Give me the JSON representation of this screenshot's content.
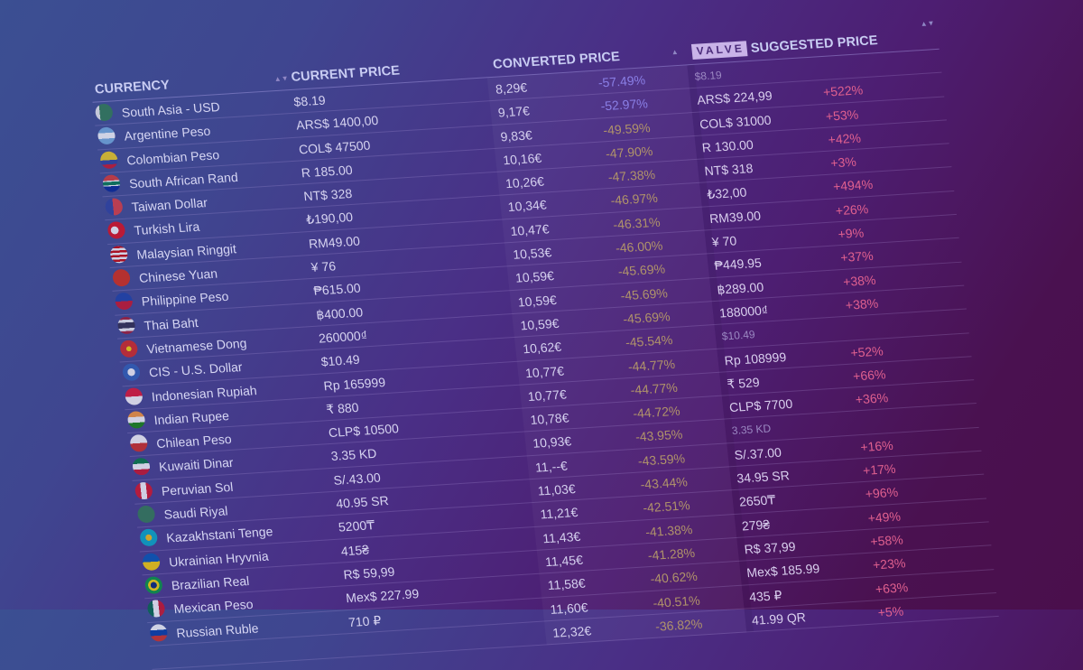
{
  "header": {
    "currency": "CURRENCY",
    "current_price": "CURRENT PRICE",
    "converted_price": "CONVERTED PRICE",
    "valve_badge": "VALVE",
    "suggested_price": "SUGGESTED PRICE",
    "sort_icon": "▲▼",
    "sort_asc_icon": "▲"
  },
  "colors": {
    "bg_start": "#3b4f92",
    "bg_end": "#4a0f4c",
    "header_text": "#c9cdf3",
    "pct_negative_strong": "#8a7fe6",
    "pct_negative": "#b0936a",
    "pct_positive": "#e0608f",
    "valve_badge_bg": "#c9b3e8"
  },
  "rows": [
    {
      "currency": "South Asia - USD",
      "flag": "flag-pakistan",
      "current": "$8.19",
      "converted": "8,29€",
      "pct": "-57.49%",
      "pct_style": "blue",
      "suggested": "$8.19",
      "suggested_muted": true,
      "diff": ""
    },
    {
      "currency": "Argentine Peso",
      "flag": "flag-argentina",
      "current": "ARS$ 1400,00",
      "converted": "9,17€",
      "pct": "-52.97%",
      "pct_style": "blue",
      "suggested": "ARS$ 224,99",
      "suggested_muted": false,
      "diff": "+522%"
    },
    {
      "currency": "Colombian Peso",
      "flag": "flag-colombia",
      "current": "COL$ 47500",
      "converted": "9,83€",
      "pct": "-49.59%",
      "pct_style": "gold",
      "suggested": "COL$ 31000",
      "suggested_muted": false,
      "diff": "+53%"
    },
    {
      "currency": "South African Rand",
      "flag": "flag-south-africa",
      "current": "R 185.00",
      "converted": "10,16€",
      "pct": "-47.90%",
      "pct_style": "gold",
      "suggested": "R 130.00",
      "suggested_muted": false,
      "diff": "+42%"
    },
    {
      "currency": "Taiwan Dollar",
      "flag": "flag-taiwan",
      "current": "NT$ 328",
      "converted": "10,26€",
      "pct": "-47.38%",
      "pct_style": "gold",
      "suggested": "NT$ 318",
      "suggested_muted": false,
      "diff": "+3%"
    },
    {
      "currency": "Turkish Lira",
      "flag": "flag-turkey",
      "current": "₺190,00",
      "converted": "10,34€",
      "pct": "-46.97%",
      "pct_style": "gold",
      "suggested": "₺32,00",
      "suggested_muted": false,
      "diff": "+494%"
    },
    {
      "currency": "Malaysian Ringgit",
      "flag": "flag-malaysia",
      "current": "RM49.00",
      "converted": "10,47€",
      "pct": "-46.31%",
      "pct_style": "gold",
      "suggested": "RM39.00",
      "suggested_muted": false,
      "diff": "+26%"
    },
    {
      "currency": "Chinese Yuan",
      "flag": "flag-china",
      "current": "¥ 76",
      "converted": "10,53€",
      "pct": "-46.00%",
      "pct_style": "gold",
      "suggested": "¥ 70",
      "suggested_muted": false,
      "diff": "+9%"
    },
    {
      "currency": "Philippine Peso",
      "flag": "flag-philippines",
      "current": "₱615.00",
      "converted": "10,59€",
      "pct": "-45.69%",
      "pct_style": "gold",
      "suggested": "₱449.95",
      "suggested_muted": false,
      "diff": "+37%"
    },
    {
      "currency": "Thai Baht",
      "flag": "flag-thailand",
      "current": "฿400.00",
      "converted": "10,59€",
      "pct": "-45.69%",
      "pct_style": "gold",
      "suggested": "฿289.00",
      "suggested_muted": false,
      "diff": "+38%"
    },
    {
      "currency": "Vietnamese Dong",
      "flag": "flag-vietnam",
      "current": "260000₫",
      "converted": "10,59€",
      "pct": "-45.69%",
      "pct_style": "gold",
      "suggested": "188000₫",
      "suggested_muted": false,
      "diff": "+38%"
    },
    {
      "currency": "CIS - U.S. Dollar",
      "flag": "flag-cis",
      "current": "$10.49",
      "converted": "10,62€",
      "pct": "-45.54%",
      "pct_style": "gold",
      "suggested": "$10.49",
      "suggested_muted": true,
      "diff": ""
    },
    {
      "currency": "Indonesian Rupiah",
      "flag": "flag-indonesia",
      "current": "Rp 165999",
      "converted": "10,77€",
      "pct": "-44.77%",
      "pct_style": "gold",
      "suggested": "Rp 108999",
      "suggested_muted": false,
      "diff": "+52%"
    },
    {
      "currency": "Indian Rupee",
      "flag": "flag-india",
      "current": "₹ 880",
      "converted": "10,77€",
      "pct": "-44.77%",
      "pct_style": "gold",
      "suggested": "₹ 529",
      "suggested_muted": false,
      "diff": "+66%"
    },
    {
      "currency": "Chilean Peso",
      "flag": "flag-chile",
      "current": "CLP$ 10500",
      "converted": "10,78€",
      "pct": "-44.72%",
      "pct_style": "gold",
      "suggested": "CLP$ 7700",
      "suggested_muted": false,
      "diff": "+36%"
    },
    {
      "currency": "Kuwaiti Dinar",
      "flag": "flag-kuwait",
      "current": "3.35 KD",
      "converted": "10,93€",
      "pct": "-43.95%",
      "pct_style": "gold",
      "suggested": "3.35 KD",
      "suggested_muted": true,
      "diff": ""
    },
    {
      "currency": "Peruvian Sol",
      "flag": "flag-peru",
      "current": "S/.43.00",
      "converted": "11,--€",
      "pct": "-43.59%",
      "pct_style": "gold",
      "suggested": "S/.37.00",
      "suggested_muted": false,
      "diff": "+16%"
    },
    {
      "currency": "Saudi Riyal",
      "flag": "flag-saudi-arabia",
      "current": "40.95 SR",
      "converted": "11,03€",
      "pct": "-43.44%",
      "pct_style": "gold",
      "suggested": "34.95 SR",
      "suggested_muted": false,
      "diff": "+17%"
    },
    {
      "currency": "Kazakhstani Tenge",
      "flag": "flag-kazakhstan",
      "current": "5200₸",
      "converted": "11,21€",
      "pct": "-42.51%",
      "pct_style": "gold",
      "suggested": "2650₸",
      "suggested_muted": false,
      "diff": "+96%"
    },
    {
      "currency": "Ukrainian Hryvnia",
      "flag": "flag-ukraine",
      "current": "415₴",
      "converted": "11,43€",
      "pct": "-41.38%",
      "pct_style": "gold",
      "suggested": "279₴",
      "suggested_muted": false,
      "diff": "+49%"
    },
    {
      "currency": "Brazilian Real",
      "flag": "flag-brazil",
      "current": "R$ 59,99",
      "converted": "11,45€",
      "pct": "-41.28%",
      "pct_style": "gold",
      "suggested": "R$ 37,99",
      "suggested_muted": false,
      "diff": "+58%"
    },
    {
      "currency": "Mexican Peso",
      "flag": "flag-mexico",
      "current": "Mex$ 227.99",
      "converted": "11,58€",
      "pct": "-40.62%",
      "pct_style": "gold",
      "suggested": "Mex$ 185.99",
      "suggested_muted": false,
      "diff": "+23%"
    },
    {
      "currency": "Russian Ruble",
      "flag": "flag-russia",
      "current": "710 ₽",
      "converted": "11,60€",
      "pct": "-40.51%",
      "pct_style": "gold",
      "suggested": "435 ₽",
      "suggested_muted": false,
      "diff": "+63%"
    },
    {
      "currency": "",
      "flag": "",
      "current": "",
      "converted": "12,32€",
      "pct": "-36.82%",
      "pct_style": "gold",
      "suggested": "41.99 QR",
      "suggested_muted": false,
      "diff": "+5%"
    }
  ]
}
